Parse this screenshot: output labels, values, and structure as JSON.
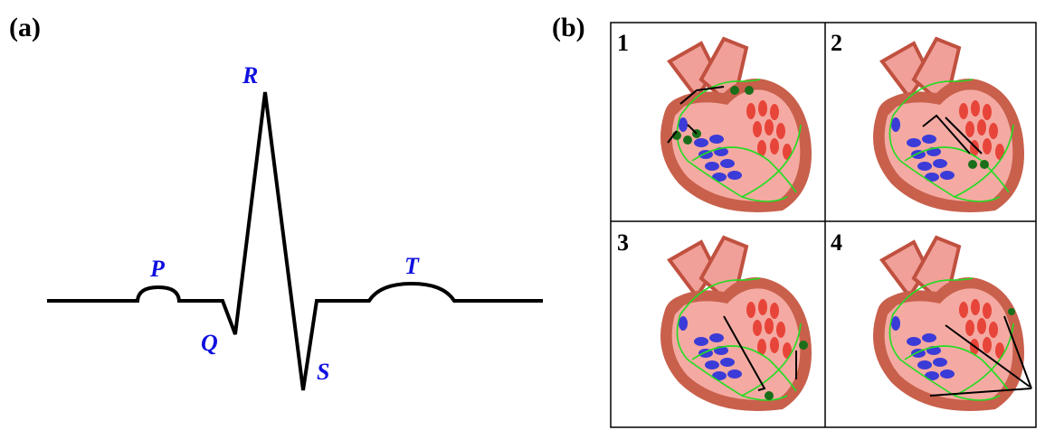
{
  "panel_a": {
    "label": "(a)",
    "wave_labels": [
      "P",
      "Q",
      "R",
      "S",
      "T"
    ]
  },
  "panel_b": {
    "label": "(b)",
    "steps": [
      "1",
      "2",
      "3",
      "4"
    ]
  }
}
